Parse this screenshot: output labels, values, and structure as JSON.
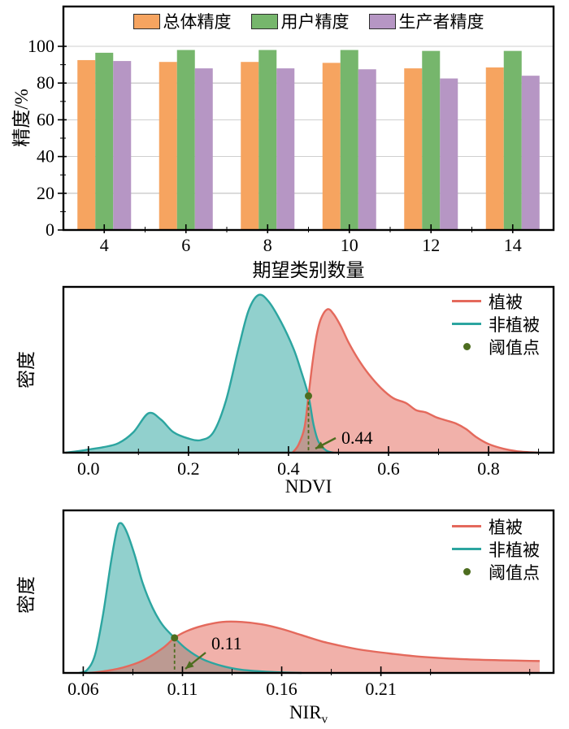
{
  "figure": {
    "background": "#ffffff",
    "frame_color": "#000000",
    "grid_color": "#cfcfcf"
  },
  "chart_data": [
    {
      "id": "accuracy-bar-chart",
      "type": "bar",
      "categories": [
        "4",
        "6",
        "8",
        "10",
        "12",
        "14"
      ],
      "series": [
        {
          "name": "总体精度",
          "color": "#F6A460",
          "values": [
            92.5,
            91.5,
            91.5,
            91,
            88,
            88.5
          ]
        },
        {
          "name": "用户精度",
          "color": "#76B66C",
          "values": [
            96.5,
            98,
            98,
            98,
            97.5,
            97.5
          ]
        },
        {
          "name": "生产者精度",
          "color": "#B696C4",
          "values": [
            92,
            88,
            88,
            87.5,
            82.5,
            84
          ]
        }
      ],
      "xlabel": "期望类别数量",
      "ylabel": "精度/%",
      "ylim": [
        0,
        100
      ],
      "yticks": [
        0,
        20,
        40,
        60,
        80,
        100
      ],
      "minor_yticks": [
        10,
        30,
        50,
        70,
        90
      ],
      "minor_xticks": [
        "5",
        "7",
        "9",
        "11",
        "13"
      ],
      "grid": "horizontal",
      "legend_position": "top-center"
    },
    {
      "id": "ndvi-density",
      "type": "area",
      "xlabel": "NDVI",
      "xlabel_sub": "",
      "ylabel": "密度",
      "xlim": [
        -0.05,
        0.93
      ],
      "xticks": [
        0.0,
        0.2,
        0.4,
        0.6,
        0.8
      ],
      "xtick_labels": [
        "0.0",
        "0.2",
        "0.4",
        "0.6",
        "0.8"
      ],
      "minor_xticks": [
        0.1,
        0.3,
        0.5,
        0.7,
        0.9
      ],
      "grid": "off",
      "legend_position": "top-right",
      "series": [
        {
          "name": "植被",
          "color": "#E4695C",
          "points": [
            [
              0.408,
              0
            ],
            [
              0.42,
              0.05
            ],
            [
              0.432,
              0.16
            ],
            [
              0.44,
              0.36
            ],
            [
              0.448,
              0.57
            ],
            [
              0.456,
              0.74
            ],
            [
              0.465,
              0.85
            ],
            [
              0.478,
              0.91
            ],
            [
              0.49,
              0.88
            ],
            [
              0.505,
              0.8
            ],
            [
              0.52,
              0.7
            ],
            [
              0.54,
              0.59
            ],
            [
              0.56,
              0.5
            ],
            [
              0.585,
              0.41
            ],
            [
              0.61,
              0.345
            ],
            [
              0.635,
              0.315
            ],
            [
              0.655,
              0.27
            ],
            [
              0.675,
              0.255
            ],
            [
              0.695,
              0.225
            ],
            [
              0.715,
              0.205
            ],
            [
              0.735,
              0.185
            ],
            [
              0.755,
              0.15
            ],
            [
              0.775,
              0.1
            ],
            [
              0.8,
              0.055
            ],
            [
              0.83,
              0.025
            ],
            [
              0.86,
              0.008
            ],
            [
              0.9,
              0
            ]
          ]
        },
        {
          "name": "非植被",
          "color": "#2CA5A0",
          "points": [
            [
              -0.045,
              0
            ],
            [
              -0.02,
              0.01
            ],
            [
              0,
              0.02
            ],
            [
              0.03,
              0.035
            ],
            [
              0.06,
              0.06
            ],
            [
              0.09,
              0.13
            ],
            [
              0.12,
              0.25
            ],
            [
              0.145,
              0.21
            ],
            [
              0.17,
              0.13
            ],
            [
              0.2,
              0.09
            ],
            [
              0.225,
              0.08
            ],
            [
              0.25,
              0.13
            ],
            [
              0.275,
              0.33
            ],
            [
              0.3,
              0.66
            ],
            [
              0.32,
              0.9
            ],
            [
              0.34,
              1
            ],
            [
              0.36,
              0.96
            ],
            [
              0.385,
              0.83
            ],
            [
              0.41,
              0.66
            ],
            [
              0.425,
              0.52
            ],
            [
              0.44,
              0.36
            ],
            [
              0.45,
              0.18
            ],
            [
              0.46,
              0.07
            ],
            [
              0.475,
              0.015
            ],
            [
              0.49,
              0
            ]
          ]
        }
      ],
      "threshold": {
        "name": "阈值点",
        "x": 0.44,
        "y": 0.36,
        "label": "0.44",
        "color": "#4D6D1F"
      }
    },
    {
      "id": "nirv-density",
      "type": "area",
      "xlabel": "NIR",
      "xlabel_sub": "v",
      "ylabel": "密度",
      "xlim": [
        0.05,
        0.297
      ],
      "xticks": [
        0.06,
        0.11,
        0.16,
        0.21
      ],
      "xtick_labels": [
        "0.06",
        "0.11",
        "0.16",
        "0.21"
      ],
      "minor_xticks": [
        0.085,
        0.135,
        0.185,
        0.235,
        0.285
      ],
      "grid": "off",
      "legend_position": "top-right",
      "series": [
        {
          "name": "植被",
          "color": "#E4695C",
          "points": [
            [
              0.063,
              0
            ],
            [
              0.07,
              0.01
            ],
            [
              0.08,
              0.035
            ],
            [
              0.09,
              0.08
            ],
            [
              0.1,
              0.16
            ],
            [
              0.106,
              0.227
            ],
            [
              0.112,
              0.27
            ],
            [
              0.12,
              0.305
            ],
            [
              0.13,
              0.33
            ],
            [
              0.14,
              0.33
            ],
            [
              0.15,
              0.315
            ],
            [
              0.16,
              0.285
            ],
            [
              0.17,
              0.245
            ],
            [
              0.18,
              0.205
            ],
            [
              0.19,
              0.175
            ],
            [
              0.2,
              0.15
            ],
            [
              0.215,
              0.125
            ],
            [
              0.23,
              0.105
            ],
            [
              0.25,
              0.09
            ],
            [
              0.27,
              0.082
            ],
            [
              0.285,
              0.078
            ],
            [
              0.29,
              0.077
            ]
          ]
        },
        {
          "name": "非植被",
          "color": "#2CA5A0",
          "points": [
            [
              0.058,
              0
            ],
            [
              0.062,
              0.02
            ],
            [
              0.066,
              0.12
            ],
            [
              0.07,
              0.38
            ],
            [
              0.074,
              0.72
            ],
            [
              0.077,
              0.93
            ],
            [
              0.079,
              0.97
            ],
            [
              0.082,
              0.91
            ],
            [
              0.086,
              0.76
            ],
            [
              0.09,
              0.58
            ],
            [
              0.095,
              0.42
            ],
            [
              0.1,
              0.31
            ],
            [
              0.106,
              0.227
            ],
            [
              0.112,
              0.155
            ],
            [
              0.12,
              0.09
            ],
            [
              0.13,
              0.045
            ],
            [
              0.14,
              0.02
            ],
            [
              0.155,
              0.006
            ],
            [
              0.17,
              0
            ]
          ]
        }
      ],
      "threshold": {
        "name": "阈值点",
        "x": 0.106,
        "y": 0.227,
        "label": "0.11",
        "color": "#4D6D1F"
      }
    }
  ]
}
